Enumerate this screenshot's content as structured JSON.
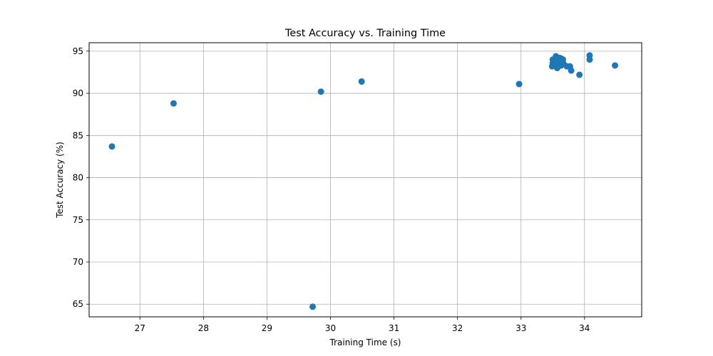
{
  "chart_data": {
    "type": "scatter",
    "title": "Test Accuracy vs. Training Time",
    "xlabel": "Training Time (s)",
    "ylabel": "Test Accuracy (%)",
    "xlim": [
      26.2,
      34.9
    ],
    "ylim": [
      63.5,
      96.0
    ],
    "x_ticks": [
      27,
      28,
      29,
      30,
      31,
      32,
      33,
      34
    ],
    "y_ticks": [
      65,
      70,
      75,
      80,
      85,
      90,
      95
    ],
    "grid": true,
    "marker_color": "#1f77b4",
    "points": [
      {
        "x": 26.56,
        "y": 83.7
      },
      {
        "x": 27.53,
        "y": 88.8
      },
      {
        "x": 29.72,
        "y": 64.7
      },
      {
        "x": 29.85,
        "y": 90.2
      },
      {
        "x": 30.49,
        "y": 91.4
      },
      {
        "x": 32.97,
        "y": 91.1
      },
      {
        "x": 33.49,
        "y": 93.2
      },
      {
        "x": 33.5,
        "y": 93.6
      },
      {
        "x": 33.5,
        "y": 94.0
      },
      {
        "x": 33.52,
        "y": 93.9
      },
      {
        "x": 33.53,
        "y": 93.3
      },
      {
        "x": 33.54,
        "y": 94.2
      },
      {
        "x": 33.55,
        "y": 93.6
      },
      {
        "x": 33.55,
        "y": 94.4
      },
      {
        "x": 33.56,
        "y": 93.8
      },
      {
        "x": 33.57,
        "y": 93.0
      },
      {
        "x": 33.58,
        "y": 94.1
      },
      {
        "x": 33.59,
        "y": 93.5
      },
      {
        "x": 33.6,
        "y": 93.9
      },
      {
        "x": 33.61,
        "y": 94.2
      },
      {
        "x": 33.62,
        "y": 93.6
      },
      {
        "x": 33.63,
        "y": 93.3
      },
      {
        "x": 33.64,
        "y": 94.1
      },
      {
        "x": 33.65,
        "y": 93.8
      },
      {
        "x": 33.66,
        "y": 94.0
      },
      {
        "x": 33.67,
        "y": 93.5
      },
      {
        "x": 33.72,
        "y": 93.2
      },
      {
        "x": 33.77,
        "y": 93.2
      },
      {
        "x": 33.79,
        "y": 92.7
      },
      {
        "x": 33.92,
        "y": 92.2
      },
      {
        "x": 34.08,
        "y": 94.5
      },
      {
        "x": 34.08,
        "y": 94.0
      },
      {
        "x": 34.48,
        "y": 93.3
      }
    ]
  }
}
